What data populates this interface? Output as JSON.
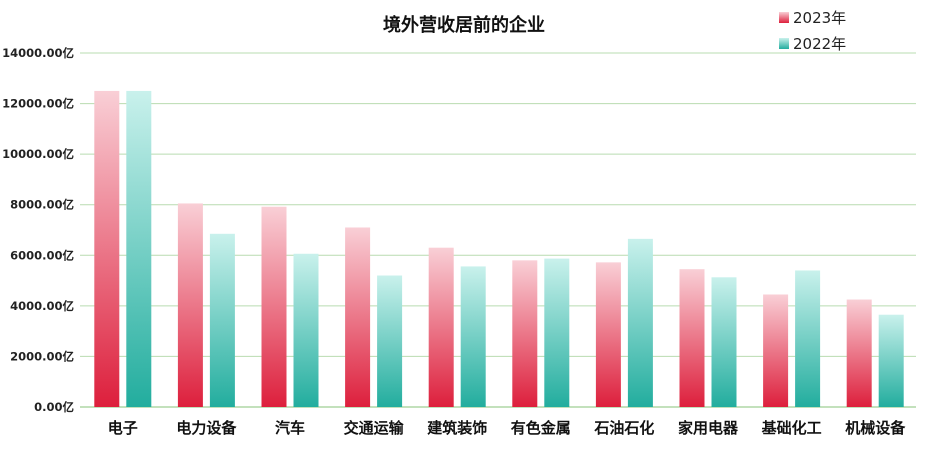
{
  "chart_data": {
    "type": "bar",
    "title": "境外营收居前的企业",
    "categories": [
      "电子",
      "电力设备",
      "汽车",
      "交通运输",
      "建筑装饰",
      "有色金属",
      "石油石化",
      "家用电器",
      "基础化工",
      "机械设备"
    ],
    "series": [
      {
        "name": "2023年",
        "values": [
          12500,
          8050,
          7920,
          7100,
          6300,
          5800,
          5720,
          5450,
          4450,
          4250
        ],
        "color_top": "#f9cfd6",
        "color_bottom": "#dd1f3c"
      },
      {
        "name": "2022年",
        "values": [
          12500,
          6850,
          6060,
          5200,
          5560,
          5870,
          6650,
          5130,
          5400,
          3650
        ],
        "color_top": "#c9f1ec",
        "color_bottom": "#22ad9e"
      }
    ],
    "y_ticks": [
      "0.00亿",
      "2000.00亿",
      "4000.00亿",
      "6000.00亿",
      "8000.00亿",
      "10000.00亿",
      "12000.00亿",
      "14000.00亿"
    ],
    "ylim": [
      0,
      14000
    ],
    "y_step": 2000,
    "xlabel": "",
    "ylabel": "",
    "grid": true,
    "legend_position": "top-right"
  }
}
